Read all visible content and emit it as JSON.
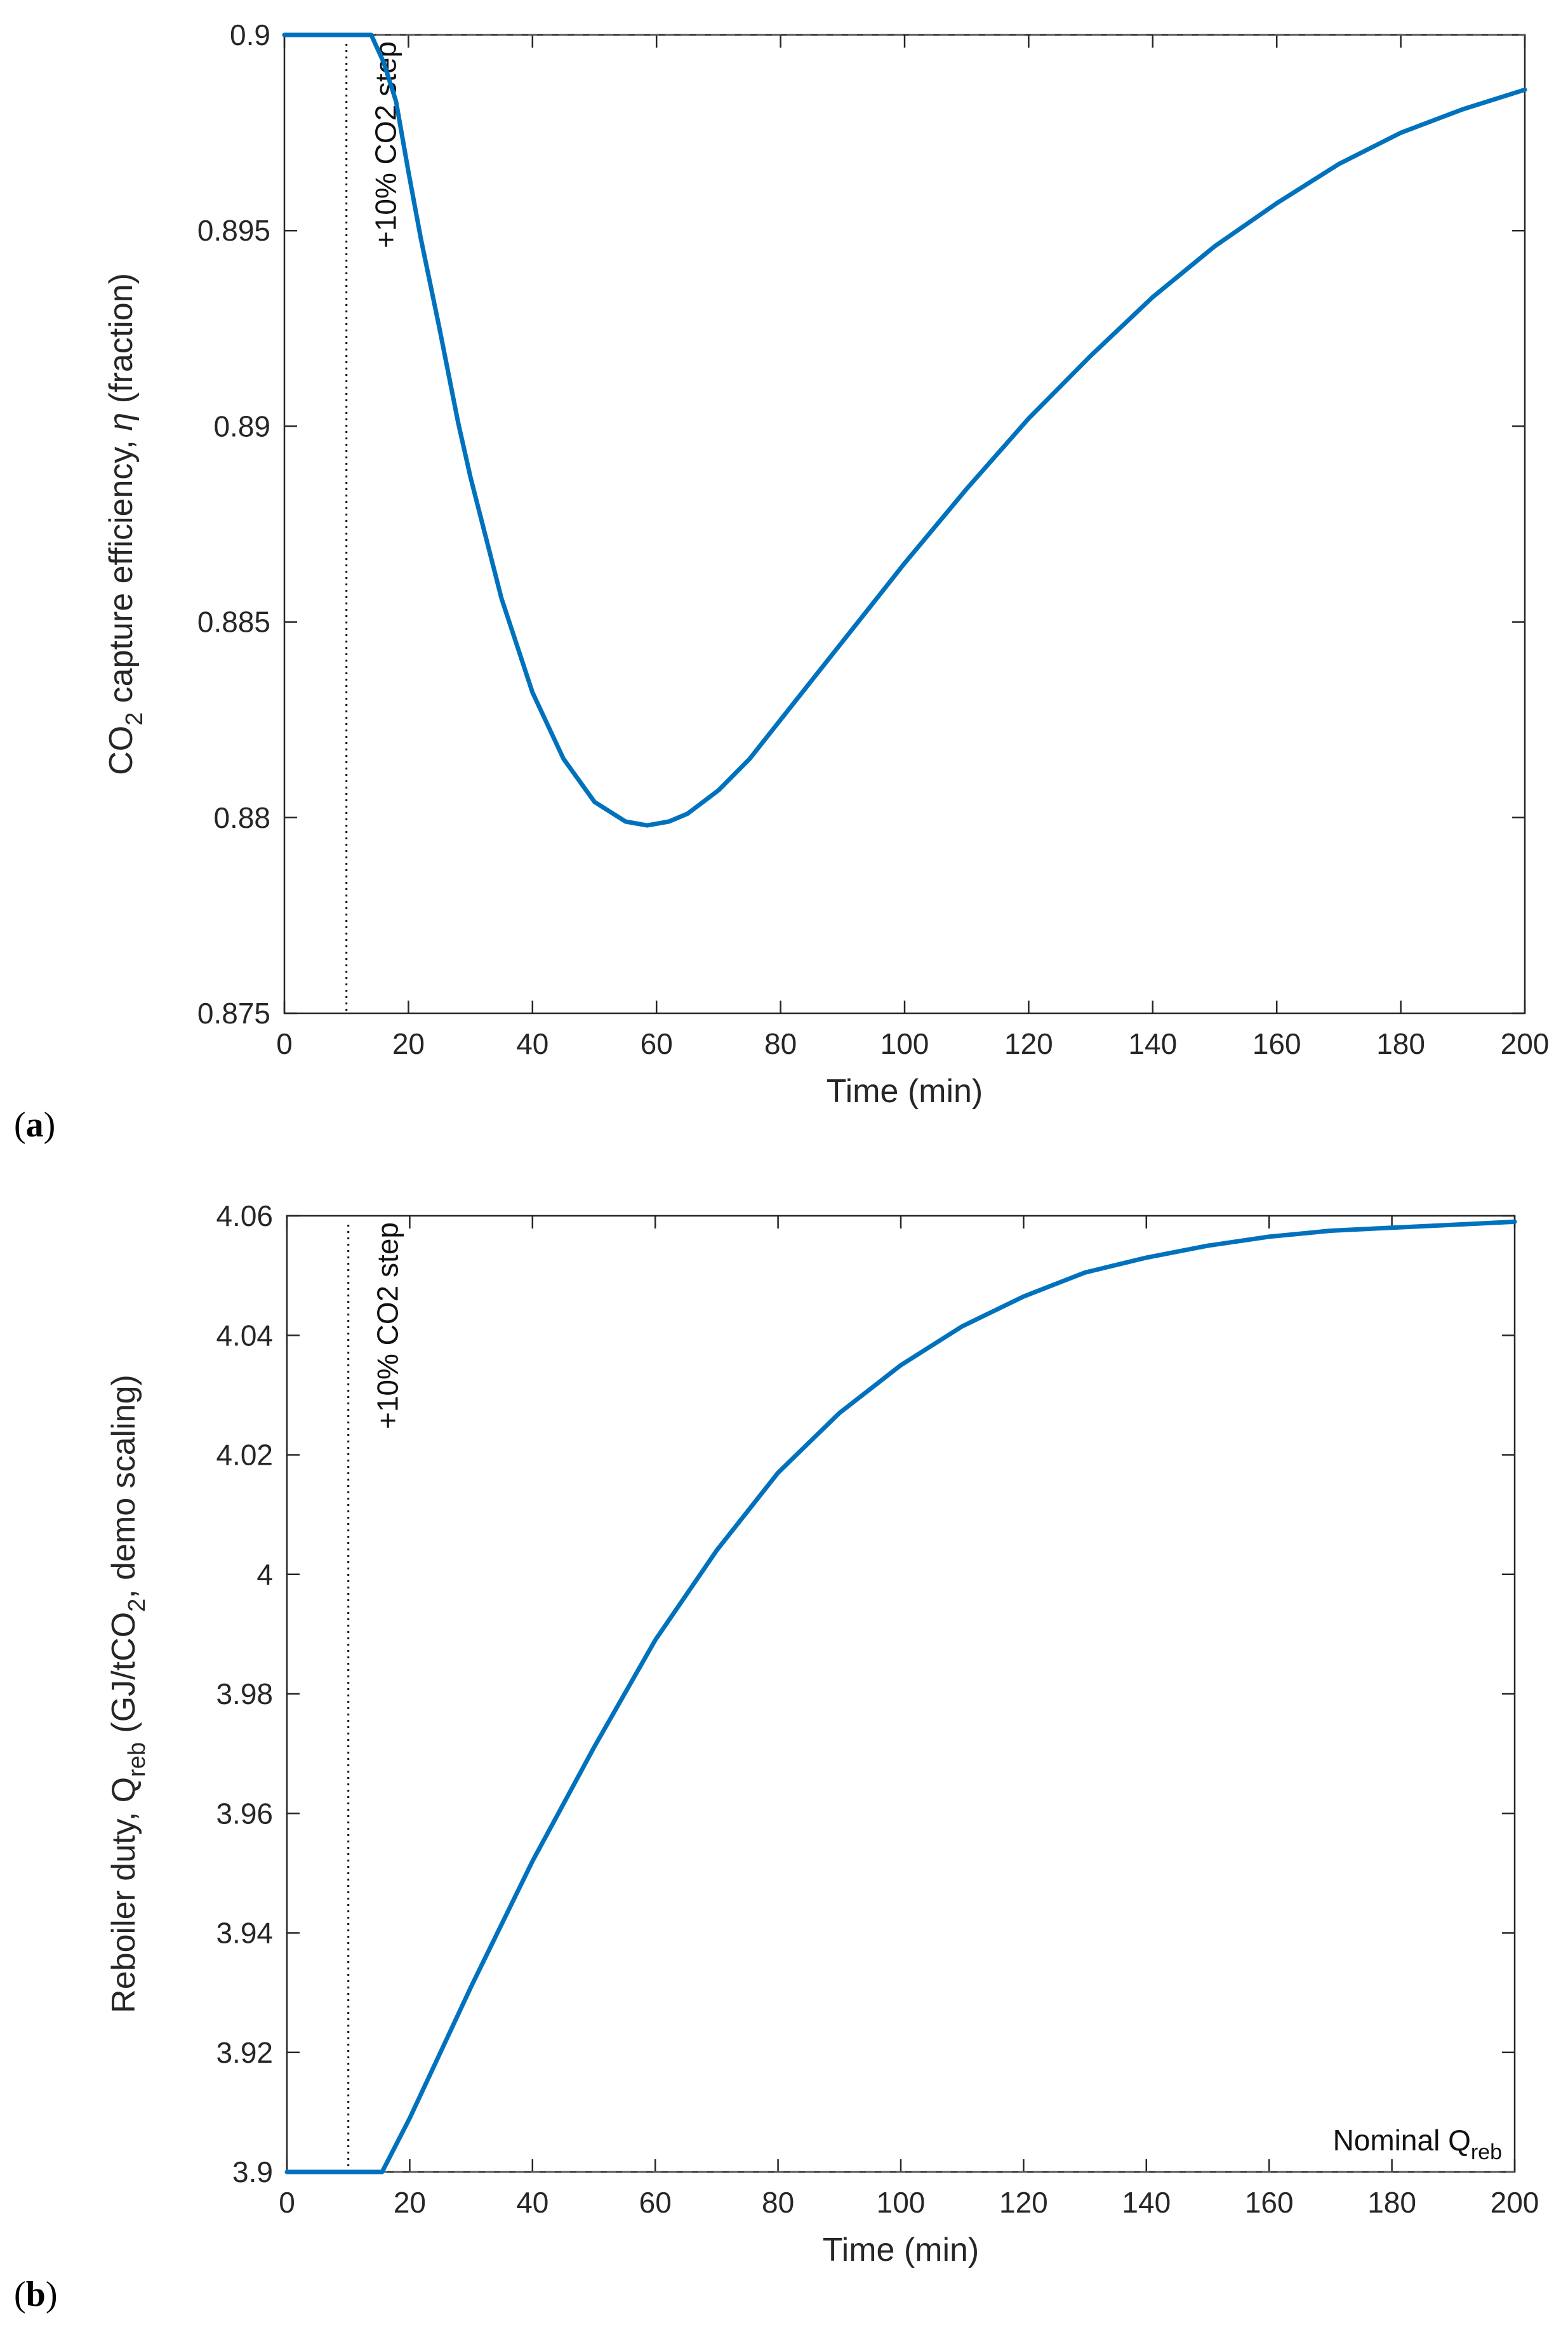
{
  "chart_data": [
    {
      "type": "line",
      "panel_label": "a",
      "xlabel": "Time (min)",
      "ylabel_parts": [
        "CO",
        "2",
        " capture efficiency, ",
        "η",
        " (fraction)"
      ],
      "xlim": [
        0,
        200
      ],
      "ylim": [
        0.875,
        0.9
      ],
      "xticks": [
        0,
        20,
        40,
        60,
        80,
        100,
        120,
        140,
        160,
        180,
        200
      ],
      "xtick_labels": [
        "0",
        "20",
        "40",
        "60",
        "80",
        "100",
        "120",
        "140",
        "160",
        "180",
        "200"
      ],
      "yticks": [
        0.875,
        0.88,
        0.885,
        0.89,
        0.895,
        0.9
      ],
      "ytick_labels": [
        "0.875",
        "0.88",
        "0.885",
        "0.89",
        "0.895",
        "0.9"
      ],
      "event_line": {
        "x": 10,
        "label": "+10% CO2 step"
      },
      "reference_line": {
        "y": 0.9,
        "style": "dashed"
      },
      "series": [
        {
          "name": "eta",
          "color": "#0072BD",
          "x": [
            0,
            5,
            10,
            14,
            16,
            18,
            20,
            22,
            25,
            28,
            30,
            35,
            40,
            45,
            50,
            55,
            58.5,
            62,
            65,
            70,
            75,
            80,
            85,
            90,
            95,
            100,
            110,
            120,
            130,
            140,
            150,
            160,
            170,
            180,
            190,
            200
          ],
          "y": [
            0.9,
            0.9,
            0.9,
            0.9,
            0.8993,
            0.8983,
            0.8965,
            0.8948,
            0.8925,
            0.8901,
            0.8887,
            0.8856,
            0.8832,
            0.8815,
            0.8804,
            0.8799,
            0.8798,
            0.8799,
            0.8801,
            0.8807,
            0.8815,
            0.8825,
            0.8835,
            0.8845,
            0.8855,
            0.8865,
            0.8884,
            0.8902,
            0.8918,
            0.8933,
            0.8946,
            0.8957,
            0.8967,
            0.8975,
            0.8981,
            0.8986
          ]
        }
      ]
    },
    {
      "type": "line",
      "panel_label": "b",
      "xlabel": "Time (min)",
      "ylabel_parts": [
        "Reboiler duty, Q",
        "reb",
        " (GJ/tCO",
        "2",
        ", demo scaling)"
      ],
      "xlim": [
        0,
        200
      ],
      "ylim": [
        3.9,
        4.06
      ],
      "xticks": [
        0,
        20,
        40,
        60,
        80,
        100,
        120,
        140,
        160,
        180,
        200
      ],
      "xtick_labels": [
        "0",
        "20",
        "40",
        "60",
        "80",
        "100",
        "120",
        "140",
        "160",
        "180",
        "200"
      ],
      "yticks": [
        3.9,
        3.92,
        3.94,
        3.96,
        3.98,
        4,
        4.02,
        4.04,
        4.06
      ],
      "ytick_labels": [
        "3.9",
        "3.92",
        "3.94",
        "3.96",
        "3.98",
        "4",
        "4.02",
        "4.04",
        "4.06"
      ],
      "event_line": {
        "x": 10,
        "label": "+10% CO2 step"
      },
      "reference_line": {
        "y": 3.9,
        "style": "dashed",
        "label_main": "Nominal Q",
        "label_sub": "reb"
      },
      "series": [
        {
          "name": "Qreb",
          "color": "#0072BD",
          "x": [
            0,
            5,
            10,
            15.5,
            20,
            25,
            30,
            40,
            50,
            60,
            70,
            80,
            90,
            100,
            110,
            120,
            130,
            140,
            150,
            160,
            170,
            180,
            190,
            200
          ],
          "y": [
            3.9,
            3.9,
            3.9,
            3.9,
            3.909,
            3.92,
            3.931,
            3.952,
            3.971,
            3.989,
            4.004,
            4.017,
            4.027,
            4.035,
            4.0415,
            4.0465,
            4.0505,
            4.053,
            4.055,
            4.0565,
            4.0575,
            4.058,
            4.0585,
            4.059
          ]
        }
      ]
    }
  ]
}
